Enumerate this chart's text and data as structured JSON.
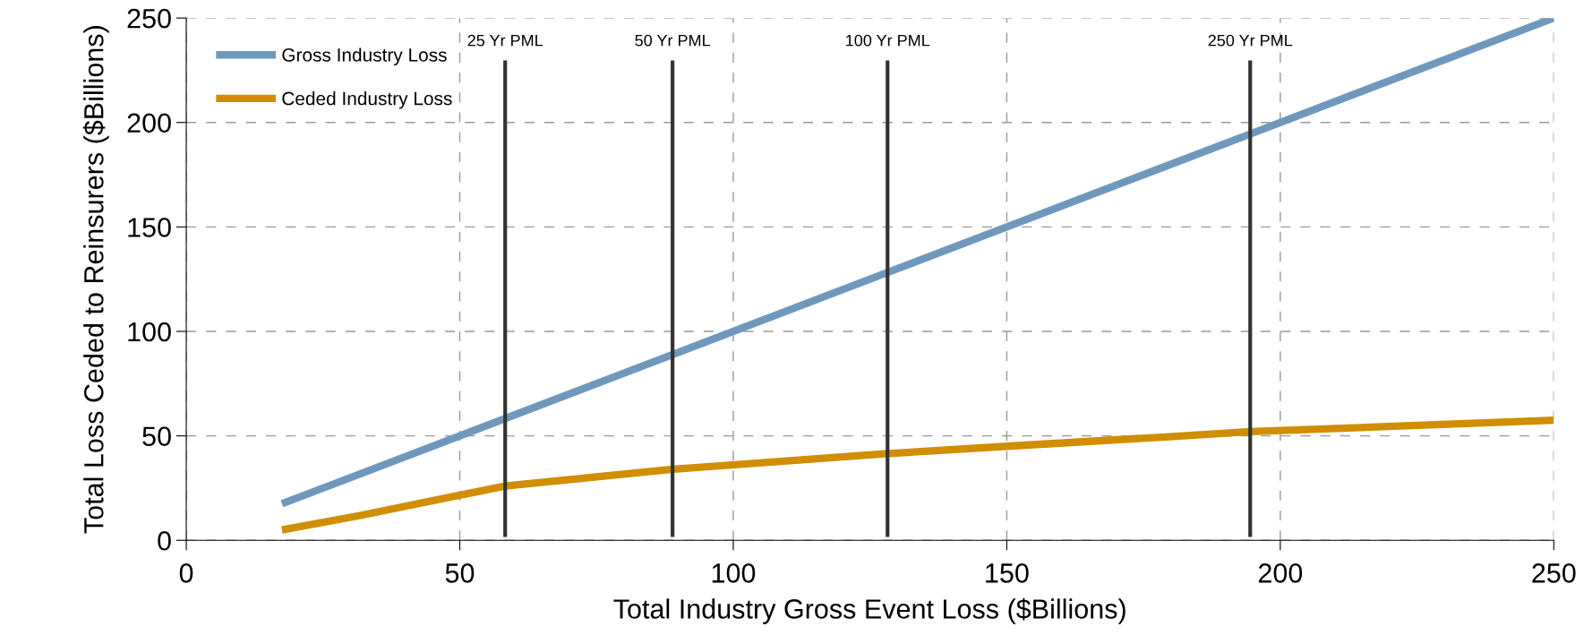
{
  "chart_data": {
    "type": "line",
    "xlabel": "Total Industry Gross Event Loss ($Billions)",
    "ylabel": "Total Loss Ceded to Reinsurers ($Billions)",
    "x": [
      17.5,
      32,
      58.3,
      88.9,
      128.2,
      150,
      179,
      194.5,
      250
    ],
    "series": [
      {
        "name": "Gross Industry Loss",
        "color": "#7098bc",
        "values": [
          17.5,
          32,
          58.3,
          88.9,
          128.2,
          150,
          179,
          194.5,
          250
        ]
      },
      {
        "name": "Ceded Industry Loss",
        "color": "#d08e00",
        "values": [
          5,
          12,
          26,
          34,
          41.5,
          45,
          49.5,
          52,
          57.5
        ]
      }
    ],
    "xlim": [
      0,
      250
    ],
    "xticks": [
      0,
      50,
      100,
      150,
      200,
      250
    ],
    "ylim": [
      0,
      250
    ],
    "yticks": [
      0,
      50,
      100,
      150,
      200,
      250
    ],
    "ref_lines": [
      {
        "axis": "x",
        "value": 58.3,
        "label": "25 Yr PML",
        "color": "#333333"
      },
      {
        "axis": "x",
        "value": 88.9,
        "label": "50 Yr PML",
        "color": "#333333"
      },
      {
        "axis": "x",
        "value": 128.2,
        "label": "100 Yr PML",
        "color": "#333333"
      },
      {
        "axis": "x",
        "value": 194.5,
        "label": "250 Yr PML",
        "color": "#333333"
      }
    ],
    "grid": true,
    "legend": "top left"
  }
}
